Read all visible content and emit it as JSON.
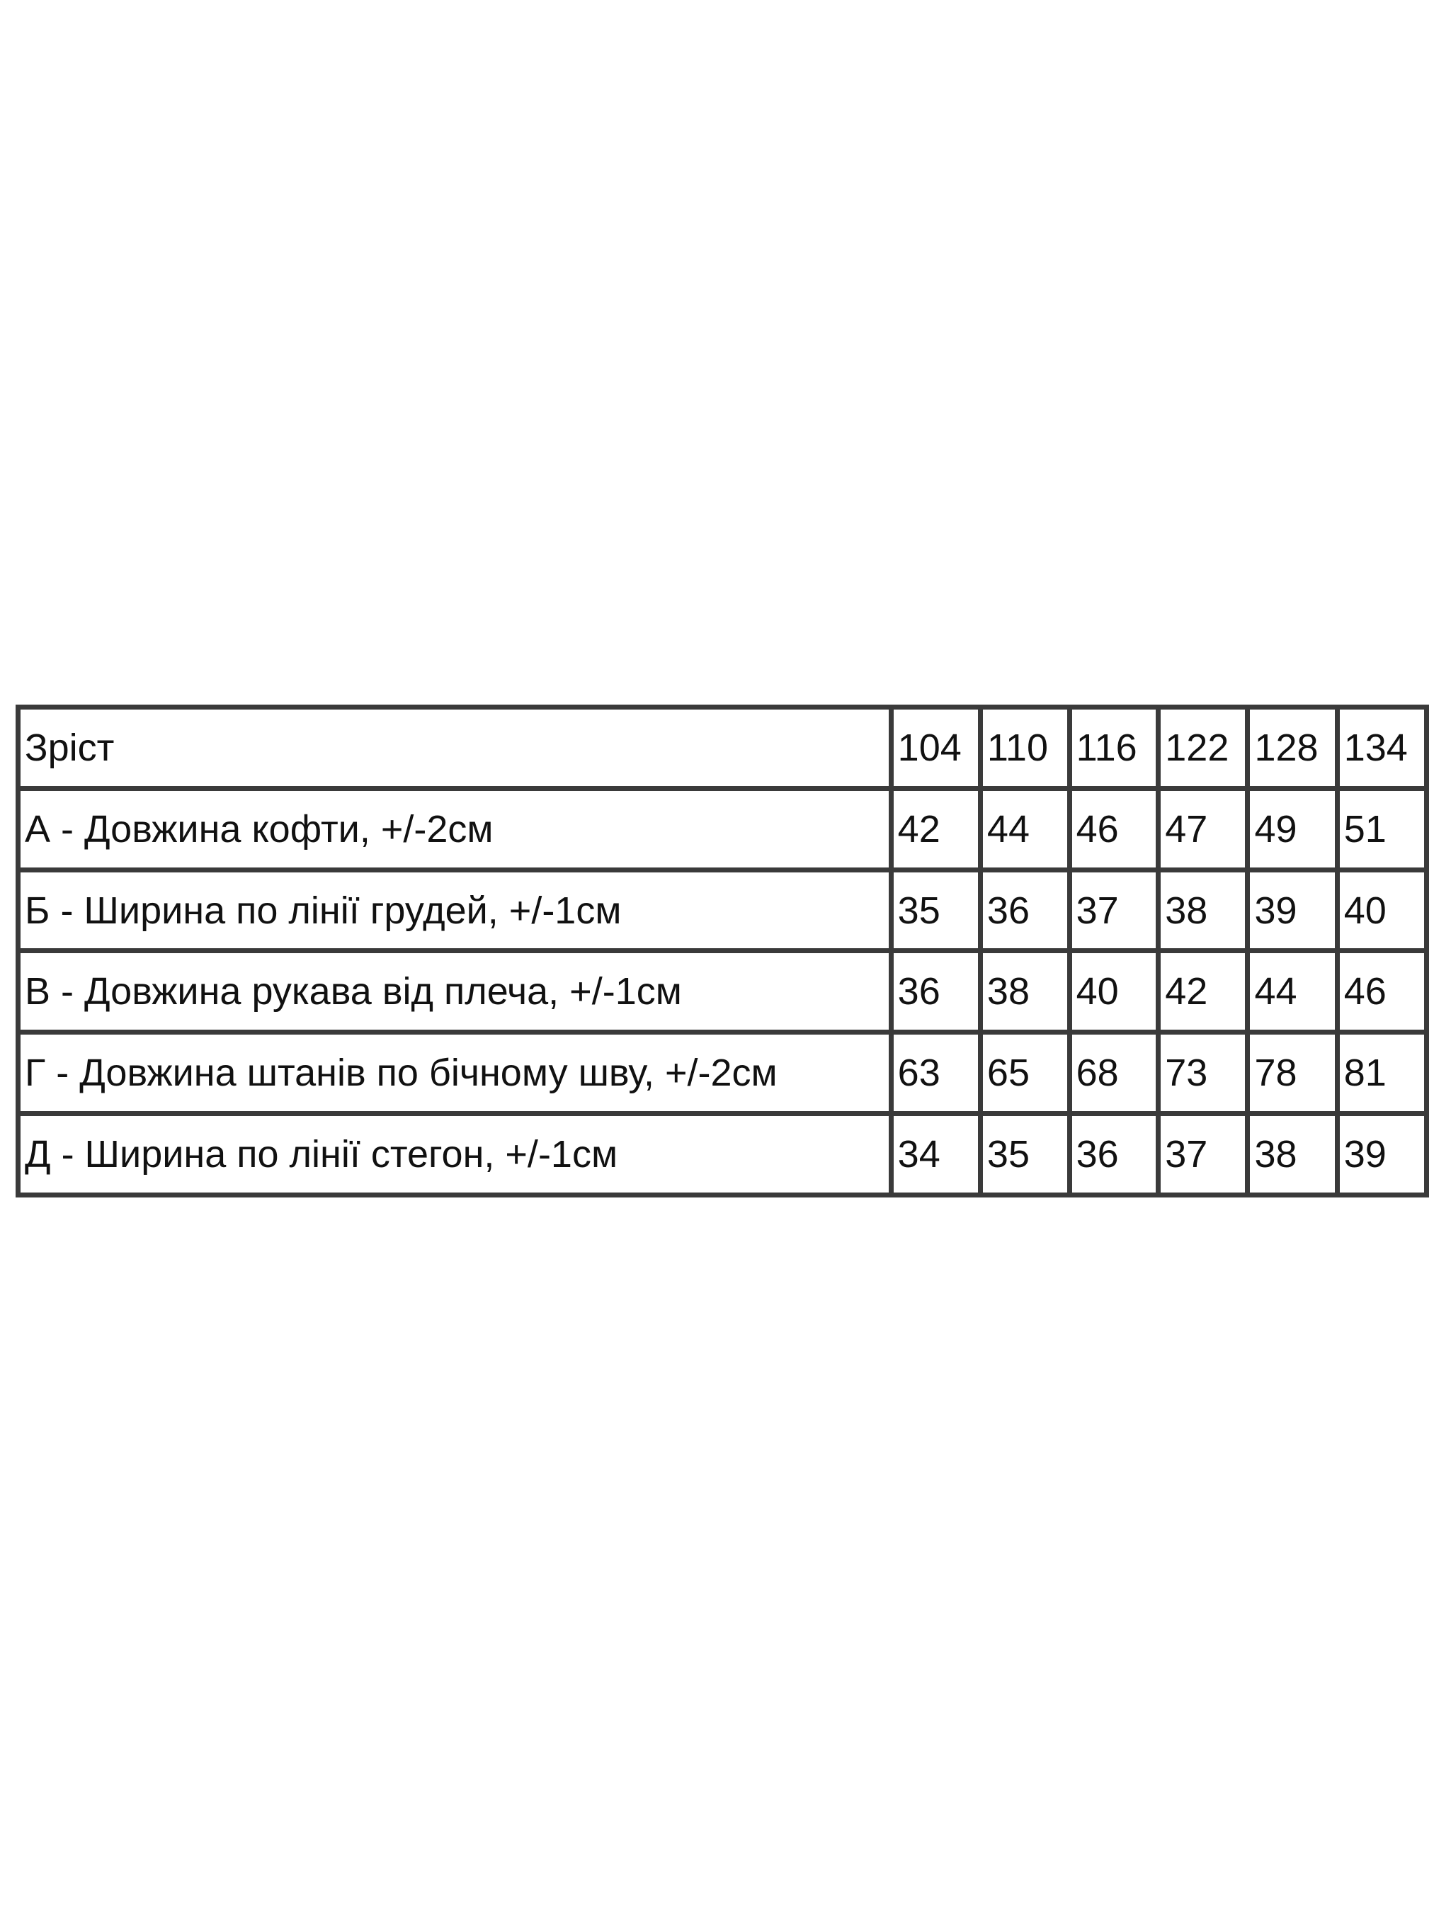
{
  "table": {
    "header": {
      "label": "Зріст",
      "sizes": [
        "104",
        "110",
        "116",
        "122",
        "128",
        "134"
      ]
    },
    "rows": [
      {
        "label": "А - Довжина кофти, +/-2см",
        "values": [
          "42",
          "44",
          "46",
          "47",
          "49",
          "51"
        ]
      },
      {
        "label": "Б - Ширина по лінії грудей, +/-1см",
        "values": [
          "35",
          "36",
          "37",
          "38",
          "39",
          "40"
        ]
      },
      {
        "label": "В - Довжина рукава від плеча, +/-1см",
        "values": [
          "36",
          "38",
          "40",
          "42",
          "44",
          "46"
        ]
      },
      {
        "label": "Г - Довжина штанів по бічному шву, +/-2см",
        "values": [
          "63",
          "65",
          "68",
          "73",
          "78",
          "81"
        ]
      },
      {
        "label": "Д - Ширина по лінії стегон, +/-1см",
        "values": [
          "34",
          "35",
          "36",
          "37",
          "38",
          "39"
        ]
      }
    ]
  }
}
